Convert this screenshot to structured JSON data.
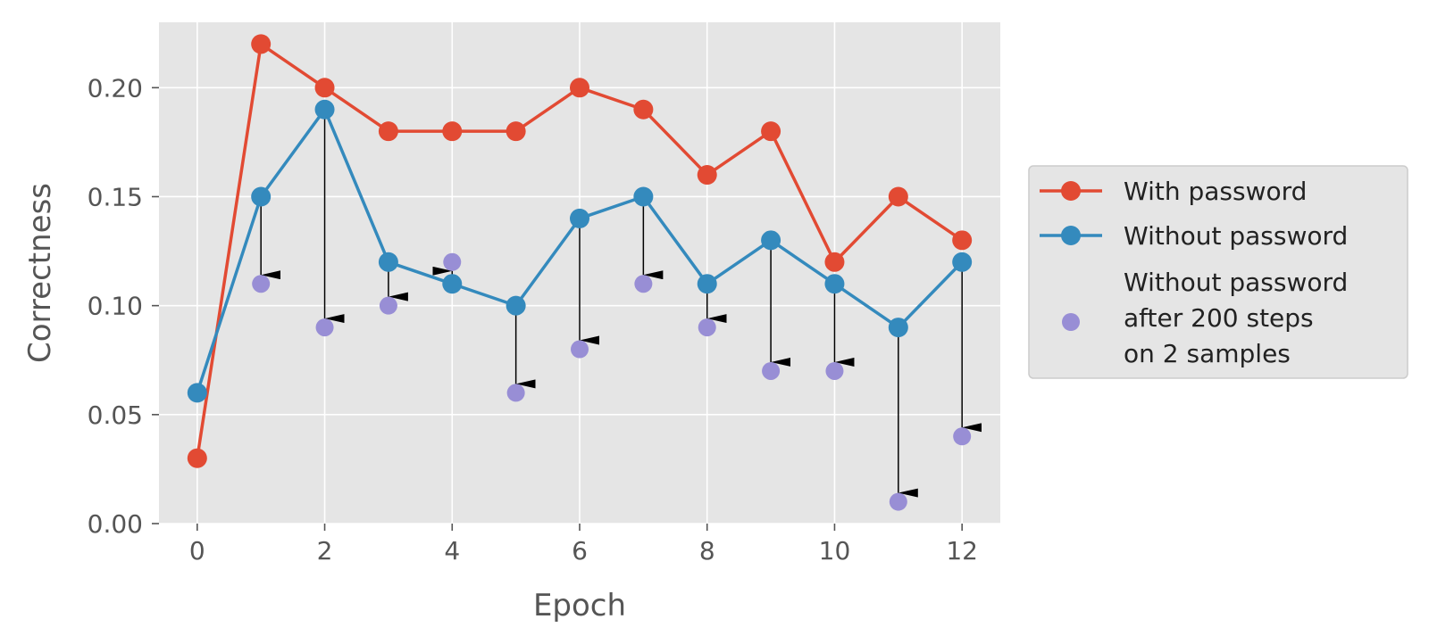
{
  "chart_data": {
    "type": "line",
    "title": "",
    "xlabel": "Epoch",
    "ylabel": "Correctness",
    "xlim": [
      -0.6,
      12.6
    ],
    "ylim": [
      0.0,
      0.23
    ],
    "x_ticks": [
      "0",
      "2",
      "4",
      "6",
      "8",
      "10",
      "12"
    ],
    "y_ticks": [
      "0.00",
      "0.05",
      "0.10",
      "0.15",
      "0.20"
    ],
    "grid": true,
    "legend_placement": "right, outside plot",
    "x": [
      0,
      1,
      2,
      3,
      4,
      5,
      6,
      7,
      8,
      9,
      10,
      11,
      12
    ],
    "series": [
      {
        "name": "With password",
        "kind": "line-marker",
        "color": "#E24A33",
        "values": [
          0.03,
          0.22,
          0.2,
          0.18,
          0.18,
          0.18,
          0.2,
          0.19,
          0.16,
          0.18,
          0.12,
          0.15,
          0.13
        ]
      },
      {
        "name": "Without password",
        "kind": "line-marker",
        "color": "#348ABD",
        "values": [
          0.06,
          0.15,
          0.19,
          0.12,
          0.11,
          0.1,
          0.14,
          0.15,
          0.11,
          0.13,
          0.11,
          0.09,
          0.12
        ]
      },
      {
        "name": "Without password\nafter 200 steps\non 2 samples",
        "kind": "scatter",
        "color": "#988ED5",
        "x": [
          1,
          2,
          3,
          4,
          5,
          6,
          7,
          8,
          9,
          10,
          11,
          12
        ],
        "values": [
          0.11,
          0.09,
          0.1,
          0.12,
          0.06,
          0.08,
          0.11,
          0.09,
          0.07,
          0.07,
          0.01,
          0.04
        ]
      }
    ],
    "arrows": {
      "color": "#000000",
      "description_from": "Without password",
      "description_to": "Without password after 200 steps on 2 samples",
      "x": [
        1,
        2,
        3,
        4,
        5,
        6,
        7,
        8,
        9,
        10,
        11,
        12
      ]
    },
    "colors": {
      "plot_background": "#E5E5E5",
      "grid": "#FFFFFF",
      "legend_background": "#E5E5E5",
      "legend_border": "#CCCCCC"
    }
  }
}
